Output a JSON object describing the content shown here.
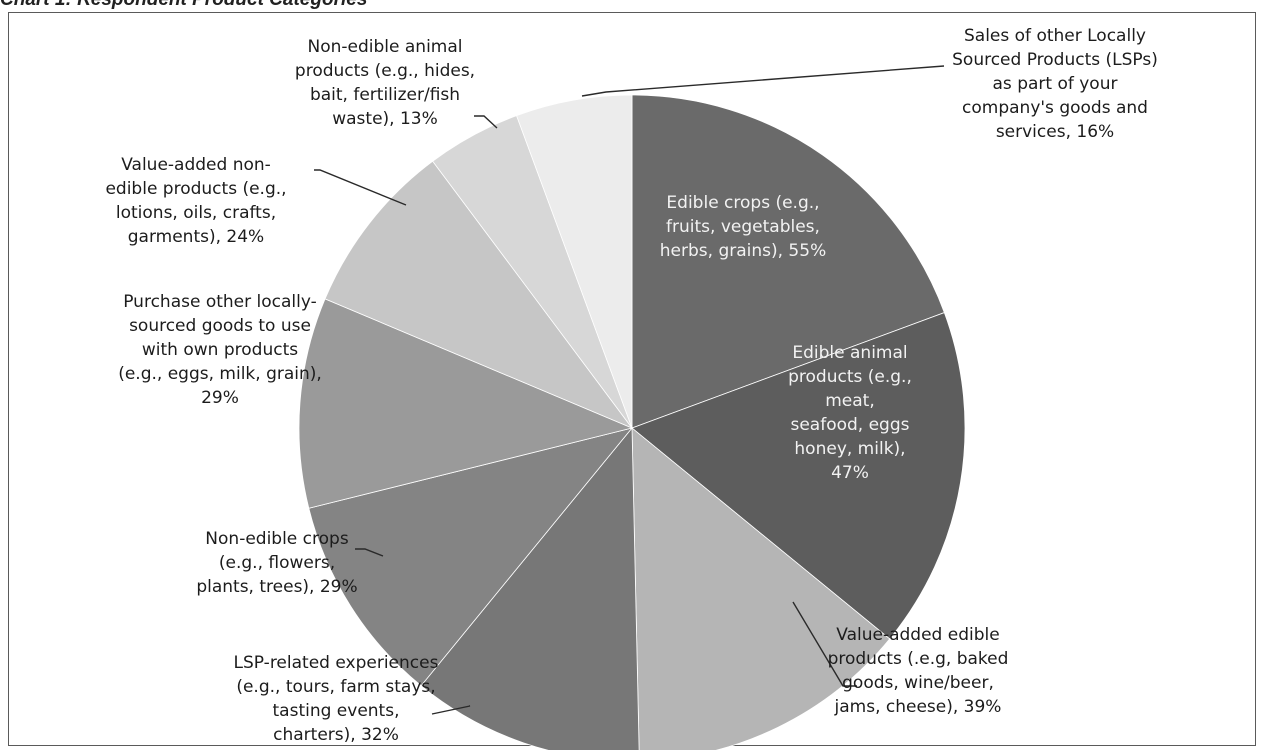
{
  "chart_data": {
    "type": "pie",
    "title": "Chart 1: Respondent Product Categories",
    "slices": [
      {
        "label": "Edible crops (e.g., fruits, vegetables, herbs, grains), 55%",
        "value": 55,
        "lines": [
          "Edible crops (e.g.,",
          "fruits, vegetables,",
          "herbs, grains), 55%"
        ],
        "color": "#6a6a6a",
        "inside": true
      },
      {
        "label": "Edible animal products (e.g., meat, seafood, eggs honey, milk), 47%",
        "value": 47,
        "lines": [
          "Edible animal",
          "products (e.g.,",
          "meat,",
          "seafood, eggs",
          "honey, milk),",
          "47%"
        ],
        "color": "#5d5d5d",
        "inside": true
      },
      {
        "label": "Value-added edible products (.e.g, baked goods, wine/beer, jams, cheese), 39%",
        "value": 39,
        "lines": [
          "Value-added edible",
          "products (.e.g, baked",
          "goods, wine/beer,",
          "jams, cheese), 39%"
        ],
        "color": "#b5b5b5",
        "inside": false
      },
      {
        "label": "LSP-related experiences (e.g., tours, farm stays, tasting events, charters), 32%",
        "value": 32,
        "lines": [
          "LSP-related experiences",
          "(e.g., tours, farm stays,",
          "tasting events,",
          "charters), 32%"
        ],
        "color": "#777777",
        "inside": false
      },
      {
        "label": "Non-edible crops (e.g., flowers, plants, trees), 29%",
        "value": 29,
        "lines": [
          "Non-edible crops",
          "(e.g., flowers,",
          "plants, trees), 29%"
        ],
        "color": "#848484",
        "inside": false
      },
      {
        "label": "Purchase other locally-sourced goods to use with own products (e.g., eggs, milk, grain), 29%",
        "value": 29,
        "lines": [
          "Purchase other locally-",
          "sourced goods to use",
          "with own products",
          "(e.g., eggs, milk, grain),",
          "29%"
        ],
        "color": "#9a9a9a",
        "inside": false
      },
      {
        "label": "Value-added non-edible products (e.g., lotions, oils, crafts, garments), 24%",
        "value": 24,
        "lines": [
          "Value-added non-",
          "edible products (e.g.,",
          "lotions, oils, crafts,",
          "garments), 24%"
        ],
        "color": "#c6c6c6",
        "inside": false
      },
      {
        "label": "Non-edible animal products (e.g., hides, bait, fertilizer/fish waste), 13%",
        "value": 13,
        "lines": [
          "Non-edible animal",
          "products (e.g., hides,",
          "bait, fertilizer/fish",
          "waste), 13%"
        ],
        "color": "#d7d7d7",
        "inside": false
      },
      {
        "label": "Sales of other Locally Sourced Products (LSPs) as part of your company's goods and services, 16%",
        "value": 16,
        "lines": [
          "Sales of other Locally",
          "Sourced Products (LSPs)",
          "as part of your",
          "company's goods and",
          "services, 16%"
        ],
        "color": "#ececec",
        "inside": false
      }
    ],
    "legend": "none"
  }
}
